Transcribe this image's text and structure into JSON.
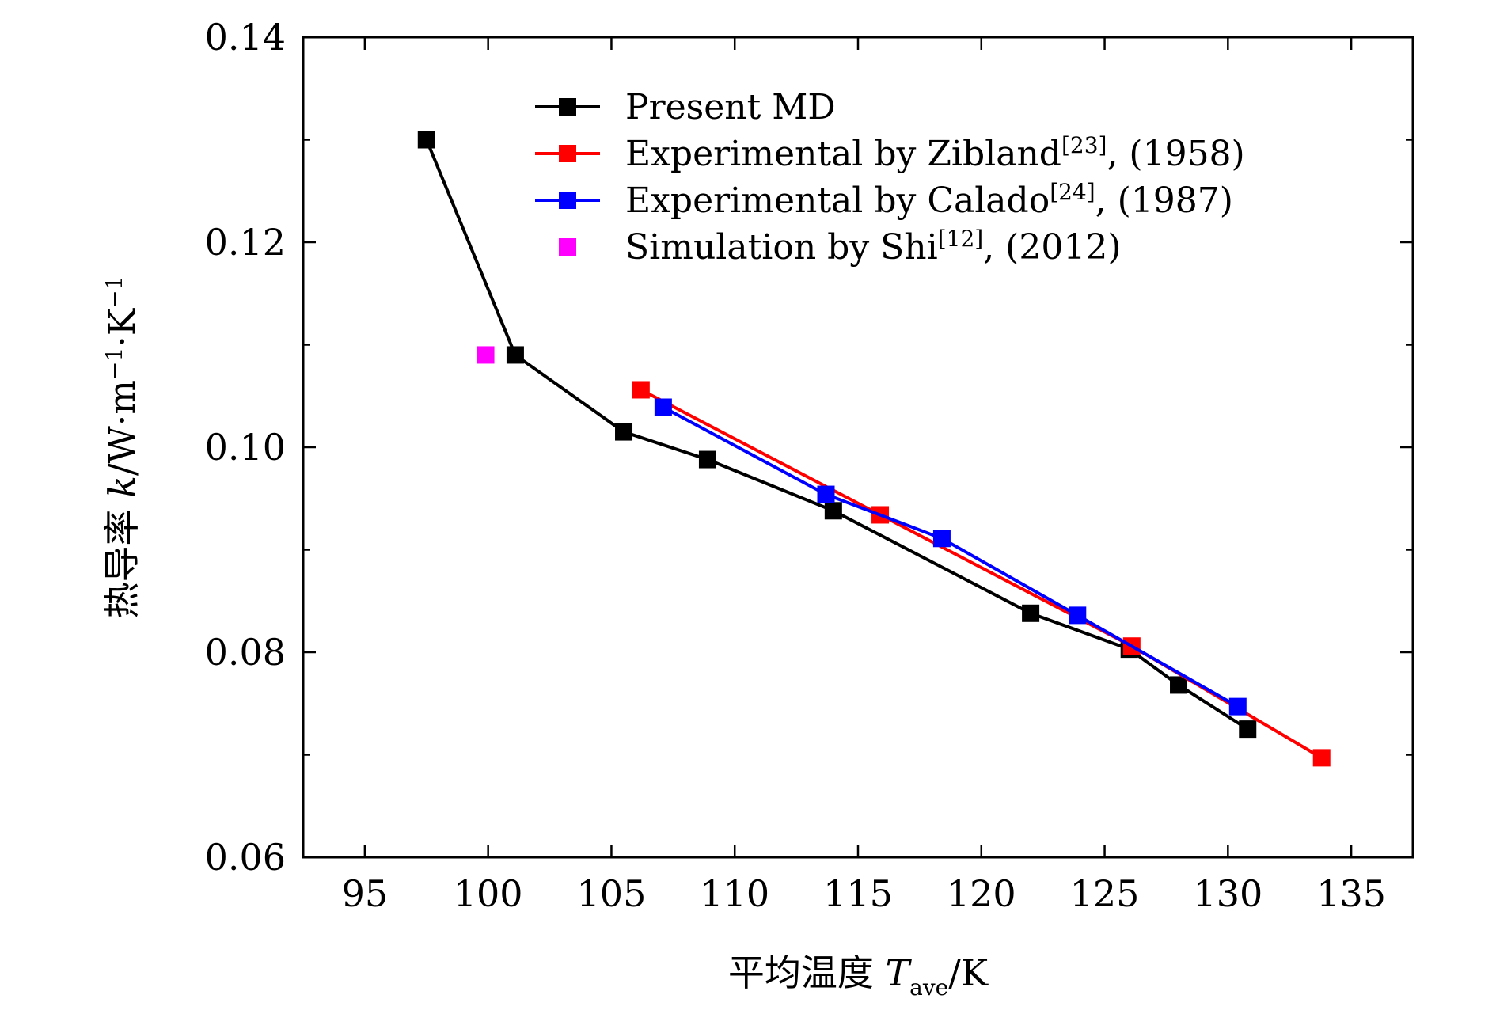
{
  "chart_data": {
    "type": "line",
    "xlabel": {
      "prefix": "平均温度 ",
      "var": "T",
      "sub": "ave",
      "unit": "/K"
    },
    "ylabel": {
      "prefix": "热导率 ",
      "var": "k",
      "unit": "/W·m",
      "exp1": "−1",
      "mid": "·K",
      "exp2": "−1"
    },
    "xlim": [
      92.5,
      137.5
    ],
    "ylim": [
      0.06,
      0.14
    ],
    "xticks": [
      95,
      100,
      105,
      110,
      115,
      120,
      125,
      130,
      135
    ],
    "xtick_labels": [
      "95",
      "100",
      "105",
      "110",
      "115",
      "120",
      "125",
      "130",
      "135"
    ],
    "yticks": [
      0.06,
      0.08,
      0.1,
      0.12,
      0.14
    ],
    "ytick_labels": [
      "0.06",
      "0.08",
      "0.10",
      "0.12",
      "0.14"
    ],
    "series": [
      {
        "name": "Present MD",
        "label_parts": {
          "text": "Present MD",
          "sup": "",
          "tail": ""
        },
        "color": "#000000",
        "line": true,
        "x": [
          97.5,
          101.1,
          105.5,
          108.9,
          114.0,
          122.0,
          126.0,
          128.0,
          130.8
        ],
        "y": [
          0.13,
          0.109,
          0.1015,
          0.0988,
          0.0938,
          0.0838,
          0.0803,
          0.0768,
          0.0725
        ]
      },
      {
        "name": "Experimental by Zibland[23], (1958)",
        "label_parts": {
          "text": "Experimental by Zibland",
          "sup": "[23]",
          "tail": ", (1958)"
        },
        "color": "#ff0000",
        "line": true,
        "x": [
          106.2,
          115.9,
          126.1,
          133.8
        ],
        "y": [
          0.1056,
          0.0934,
          0.0806,
          0.0697
        ]
      },
      {
        "name": "Experimental by Calado[24], (1987)",
        "label_parts": {
          "text": "Experimental by Calado",
          "sup": "[24]",
          "tail": ", (1987)"
        },
        "color": "#0000ff",
        "line": true,
        "x": [
          107.1,
          113.7,
          118.4,
          123.9,
          130.4
        ],
        "y": [
          0.1039,
          0.0954,
          0.0911,
          0.0836,
          0.0747
        ]
      },
      {
        "name": "Simulation by Shi[12], (2012)",
        "label_parts": {
          "text": "Simulation by Shi",
          "sup": "[12]",
          "tail": ", (2012)"
        },
        "color": "#ff00ff",
        "line": false,
        "x": [
          99.9
        ],
        "y": [
          0.109
        ]
      }
    ],
    "legend_position": "top-right"
  }
}
